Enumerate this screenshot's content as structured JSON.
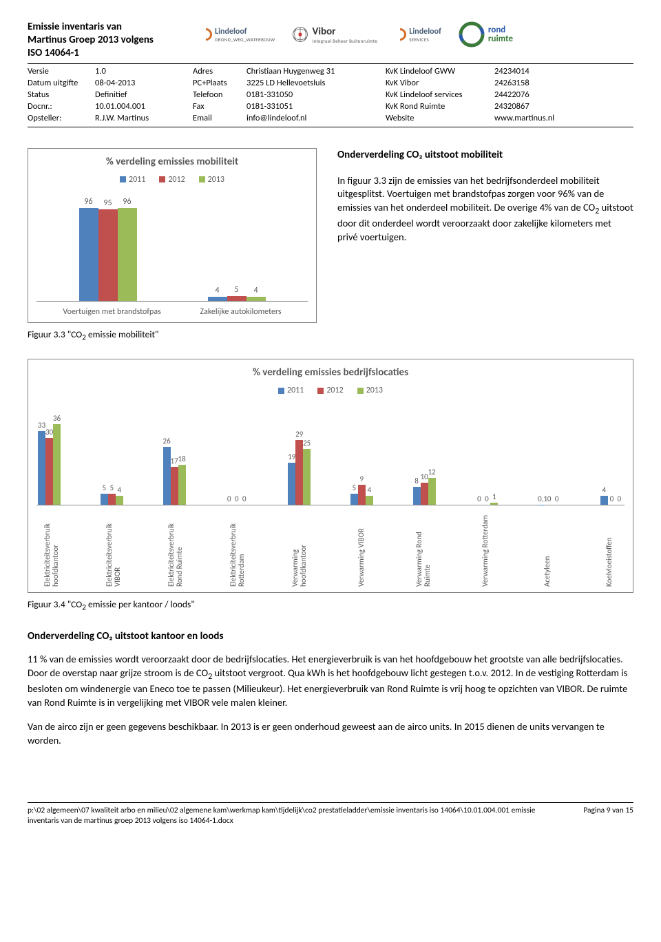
{
  "colors": {
    "y2011": "#4f81bd",
    "y2012": "#c0504d",
    "y2013": "#9bbb59",
    "chart_border": "#7f7f7f",
    "text_muted": "#595959"
  },
  "header": {
    "title_line1": "Emissie inventaris van",
    "title_line2": "Martinus Groep 2013 volgens",
    "title_line3": "ISO 14064-1",
    "meta": {
      "versie_label": "Versie",
      "versie": "1.0",
      "datum_label": "Datum uitgifte",
      "datum": "08-04-2013",
      "status_label": "Status",
      "status": "Definitief",
      "docnr_label": "Docnr.:",
      "docnr": "10.01.004.001",
      "opsteller_label": "Opsteller:",
      "opsteller": "R.J.W. Martinus",
      "adres_label": "Adres",
      "adres": "Christiaan Huygenweg 31",
      "pcplaats_label": "PC+Plaats",
      "pcplaats": "3225 LD Hellevoetsluis",
      "tel_label": "Telefoon",
      "tel": "0181-331050",
      "fax_label": "Fax",
      "fax": "0181-331051",
      "email_label": "Email",
      "email": "info@lindeloof.nl",
      "kvk1_label": "KvK Lindeloof GWW",
      "kvk1": "24234014",
      "kvk2_label": "KvK Vibor",
      "kvk2": "24263158",
      "kvk3_label": "KvK Lindeloof services",
      "kvk3": "24422076",
      "kvk4_label": "KvK Rond Ruimte",
      "kvk4": "24320867",
      "website_label": "Website",
      "website": "www.martinus.nl"
    },
    "logos": {
      "lindeloof": "Lindeloof",
      "lindeloof_sub": "GROND_WEG_WATERBOUW",
      "vibor": "Vibor",
      "vibor_sub": "Integraal Beheer Buitenruimte",
      "lindeloof2": "Lindeloof",
      "lindeloof2_sub": "SERVICES",
      "rond": "rond",
      "rond2": "ruimte"
    }
  },
  "chart1": {
    "title": "% verdeling emissies mobiliteit",
    "years": [
      "2011",
      "2012",
      "2013"
    ],
    "categories": [
      "Voertuigen met brandstofpas",
      "Zakelijke autokilometers"
    ],
    "data": [
      [
        96,
        95,
        96
      ],
      [
        4,
        5,
        4
      ]
    ],
    "ymax": 100
  },
  "side": {
    "heading": "Onderverdeling CO₂ uitstoot mobiliteit",
    "p1a": "In figuur 3.3 zijn de emissies van het bedrijfsonderdeel mobiliteit uitgesplitst. Voertuigen met brandstofpas zorgen voor 96% van de emissies van het onderdeel mobiliteit. De overige 4% van de CO",
    "p1b": " uitstoot door dit onderdeel wordt veroorzaakt door zakelijke kilometers met privé voertuigen."
  },
  "caption1a": "Figuur 3.3 \"CO",
  "caption1b": " emissie mobiliteit\"",
  "chart2": {
    "title": "% verdeling emissies bedrijfslocaties",
    "years": [
      "2011",
      "2012",
      "2013"
    ],
    "categories": [
      "Elektriciteitsverbruik hoofdkantoor",
      "Elektriciteitsverbruik VIBOR",
      "Elektriciteitsverbruik Rond Ruimte",
      "Elektriciteitsverbruik Rotterdam",
      "Verwarming hoofdkantoor",
      "Verwarming VIBOR",
      "Verwarming Rond Ruimte",
      "Verwarming Rotterdam",
      "Acetyleen",
      "Koelvloeistoffen"
    ],
    "data": [
      [
        33,
        30,
        36
      ],
      [
        5,
        5,
        4
      ],
      [
        26,
        17,
        18
      ],
      [
        0,
        0,
        0
      ],
      [
        19,
        29,
        25
      ],
      [
        5,
        9,
        4
      ],
      [
        8,
        10,
        12
      ],
      [
        0,
        0,
        1
      ],
      [
        0.1,
        0,
        0
      ],
      [
        4,
        0,
        0
      ]
    ],
    "labels": [
      [
        "33",
        "30",
        "36"
      ],
      [
        "5",
        "5",
        "4"
      ],
      [
        "26",
        "17",
        "18"
      ],
      [
        "0",
        "0",
        "0"
      ],
      [
        "19",
        "29",
        "25"
      ],
      [
        "5",
        "9",
        "4"
      ],
      [
        "8",
        "10",
        "12"
      ],
      [
        "0",
        "0",
        "1"
      ],
      [
        "0,1",
        "0",
        "0"
      ],
      [
        "4",
        "0",
        "0"
      ]
    ],
    "ymax": 40
  },
  "caption2a": "Figuur 3.4 \"CO",
  "caption2b": " emissie per kantoor / loods\"",
  "body": {
    "heading": "Onderverdeling CO₂ uitstoot kantoor en loods",
    "p1a": "11 % van de emissies wordt veroorzaakt door de bedrijfslocaties. Het energieverbruik is van het hoofdgebouw het grootste van alle bedrijfslocaties. Door de overstap naar grijze stroom is de CO",
    "p1b": " uitstoot vergroot. Qua kWh is het hoofdgebouw licht gestegen t.o.v. 2012. In de vestiging Rotterdam is besloten om windenergie van Eneco toe te passen (Milieukeur). Het energieverbruik van Rond Ruimte is vrij hoog te opzichten van VIBOR. De ruimte van Rond Ruimte is in vergelijking met VIBOR vele malen kleiner.",
    "p2": "Van de airco zijn er geen gegevens beschikbaar. In 2013 is er geen onderhoud geweest aan de airco units. In 2015 dienen de units vervangen te worden."
  },
  "footer": {
    "path": "p:\\02 algemeen\\07 kwaliteit arbo en milieu\\02 algemene kam\\werkmap kam\\tijdelijk\\co2 prestatieladder\\emissie inventaris iso 14064\\10.01.004.001 emissie inventaris van de martinus groep 2013 volgens iso 14064-1.docx",
    "page": "Pagina 9 van 15"
  }
}
